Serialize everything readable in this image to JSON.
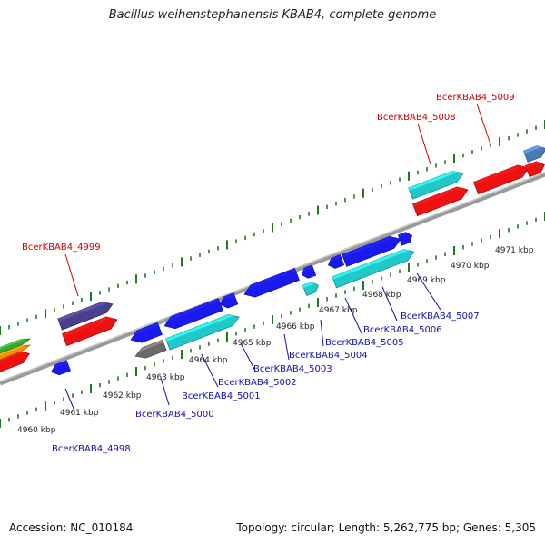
{
  "title": "Bacillus weihenstephanensis KBAB4, complete genome",
  "footer": {
    "accession": "Accession: NC_010184",
    "summary": "Topology: circular; Length: 5,262,775 bp; Genes: 5,305"
  },
  "colors": {
    "blue": "#1a1aee",
    "cyan": "#22c8c8",
    "red": "#ee1111",
    "purple": "#4a3f8a",
    "gray": "#6a6a6a",
    "steel": "#4a7ab0",
    "green": "#33aa33",
    "orange": "#f0900a",
    "tick": "#1f7a1f",
    "backbone": "#888888",
    "label_top": "#d00000",
    "label_bottom": "#1010b0"
  },
  "scale_labels": [
    "4960 kbp",
    "4961 kbp",
    "4962 kbp",
    "4963 kbp",
    "4964 kbp",
    "4965 kbp",
    "4966 kbp",
    "4967 kbp",
    "4968 kbp",
    "4969 kbp",
    "4970 kbp",
    "4971 kbp"
  ],
  "top_gene_labels": [
    "BcerKBAB4_4999",
    "BcerKBAB4_5008",
    "BcerKBAB4_5009"
  ],
  "bottom_gene_labels": [
    "BcerKBAB4_4998",
    "BcerKBAB4_5000",
    "BcerKBAB4_5001",
    "BcerKBAB4_5002",
    "BcerKBAB4_5003",
    "BcerKBAB4_5004",
    "BcerKBAB4_5005",
    "BcerKBAB4_5006",
    "BcerKBAB4_5007"
  ]
}
